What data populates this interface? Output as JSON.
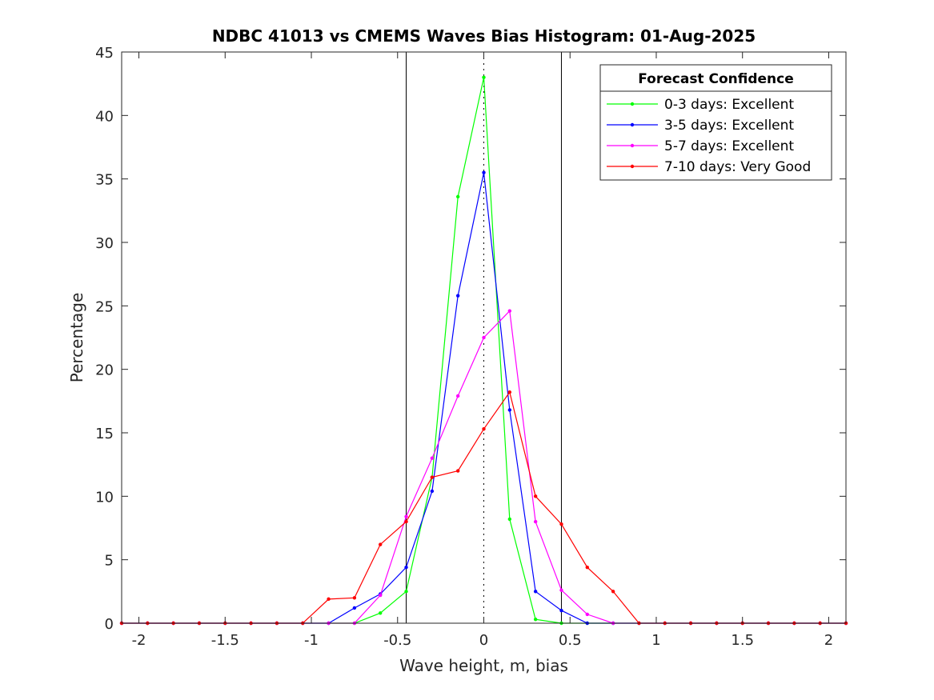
{
  "chart_data": {
    "type": "line",
    "title": "NDBC 41013 vs CMEMS Waves Bias Histogram: 01-Aug-2025",
    "xlabel": "Wave height, m, bias",
    "ylabel": "Percentage",
    "xlim": [
      -2.1,
      2.1
    ],
    "ylim": [
      0,
      45
    ],
    "xticks": [
      -2,
      -1.5,
      -1,
      -0.5,
      0,
      0.5,
      1,
      1.5,
      2
    ],
    "xtick_labels": [
      "-2",
      "-1.5",
      "-1",
      "-0.5",
      "0",
      "0.5",
      "1",
      "1.5",
      "2"
    ],
    "yticks": [
      0,
      5,
      10,
      15,
      20,
      25,
      30,
      35,
      40,
      45
    ],
    "ytick_labels": [
      "0",
      "5",
      "10",
      "15",
      "20",
      "25",
      "30",
      "35",
      "40",
      "45"
    ],
    "grid": false,
    "vertical_lines": [
      {
        "x": -0.45,
        "style": "solid",
        "color": "#000000"
      },
      {
        "x": 0.45,
        "style": "solid",
        "color": "#000000"
      },
      {
        "x": 0,
        "style": "dotted",
        "color": "#000000"
      }
    ],
    "legend": {
      "title": "Forecast Confidence",
      "location": "top-right"
    },
    "x": [
      -2.1,
      -1.95,
      -1.8,
      -1.65,
      -1.5,
      -1.35,
      -1.2,
      -1.05,
      -0.9,
      -0.75,
      -0.6,
      -0.45,
      -0.3,
      -0.15,
      0,
      0.15,
      0.3,
      0.45,
      0.6,
      0.75,
      0.9,
      1.05,
      1.2,
      1.35,
      1.5,
      1.65,
      1.8,
      1.95,
      2.1
    ],
    "series": [
      {
        "name": "0-3 days: Excellent",
        "color": "#00ff00",
        "values": [
          0,
          0,
          0,
          0,
          0,
          0,
          0,
          0,
          0,
          0,
          0.8,
          2.5,
          11.5,
          33.6,
          43.0,
          8.2,
          0.3,
          0,
          0,
          0,
          0,
          0,
          0,
          0,
          0,
          0,
          0,
          0,
          0
        ]
      },
      {
        "name": "3-5 days: Excellent",
        "color": "#0000ff",
        "values": [
          0,
          0,
          0,
          0,
          0,
          0,
          0,
          0,
          0,
          1.2,
          2.3,
          4.4,
          10.4,
          25.8,
          35.5,
          16.8,
          2.5,
          1.0,
          0,
          0,
          0,
          0,
          0,
          0,
          0,
          0,
          0,
          0,
          0
        ]
      },
      {
        "name": "5-7 days: Excellent",
        "color": "#ff00ff",
        "values": [
          0,
          0,
          0,
          0,
          0,
          0,
          0,
          0,
          0,
          0,
          2.2,
          8.4,
          13.0,
          17.9,
          22.5,
          24.6,
          8.0,
          2.6,
          0.7,
          0,
          0,
          0,
          0,
          0,
          0,
          0,
          0,
          0,
          0
        ]
      },
      {
        "name": "7-10 days: Very Good",
        "color": "#ff0000",
        "values": [
          0,
          0,
          0,
          0,
          0,
          0,
          0,
          0,
          1.9,
          2.0,
          6.2,
          8.0,
          11.5,
          12.0,
          15.3,
          18.2,
          10.0,
          7.8,
          4.4,
          2.5,
          0,
          0,
          0,
          0,
          0,
          0,
          0,
          0,
          0
        ]
      }
    ]
  }
}
